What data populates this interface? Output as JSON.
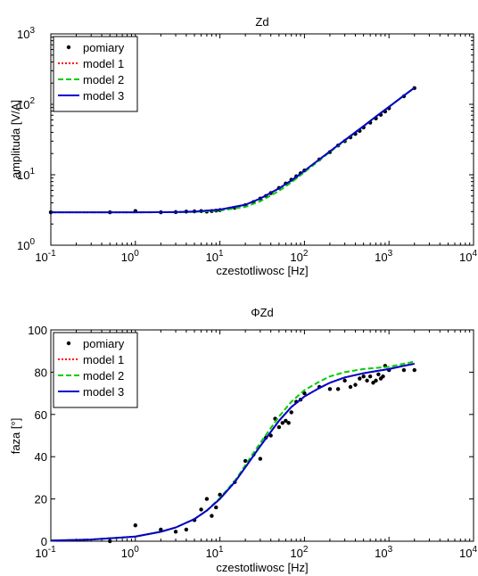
{
  "chart_data": [
    {
      "type": "line",
      "title": "Zd",
      "xlabel": "czestotliwosc [Hz]",
      "ylabel": "amplituda [V/A]",
      "xscale": "log",
      "yscale": "log",
      "xlim": [
        0.1,
        10000
      ],
      "ylim": [
        1,
        1000
      ],
      "x_ticks": [
        {
          "value": 0.1,
          "base": "10",
          "exp": "-1"
        },
        {
          "value": 1,
          "base": "10",
          "exp": "0"
        },
        {
          "value": 10,
          "base": "10",
          "exp": "1"
        },
        {
          "value": 100,
          "base": "10",
          "exp": "2"
        },
        {
          "value": 1000,
          "base": "10",
          "exp": "3"
        },
        {
          "value": 10000,
          "base": "10",
          "exp": "4"
        }
      ],
      "y_ticks": [
        {
          "value": 1,
          "base": "10",
          "exp": "0"
        },
        {
          "value": 10,
          "base": "10",
          "exp": "1"
        },
        {
          "value": 100,
          "base": "10",
          "exp": "2"
        },
        {
          "value": 1000,
          "base": "10",
          "exp": "3"
        }
      ],
      "legend_position": "top-left",
      "series": [
        {
          "name": "pomiary",
          "style": "markers",
          "color": "#000000",
          "points": [
            [
              0.1,
              2.93
            ],
            [
              0.5,
              2.93
            ],
            [
              1,
              3.05
            ],
            [
              2,
              2.93
            ],
            [
              3,
              2.95
            ],
            [
              4,
              3.0
            ],
            [
              5,
              3.02
            ],
            [
              6,
              3.05
            ],
            [
              7,
              3.0
            ],
            [
              8,
              3.05
            ],
            [
              9,
              3.1
            ],
            [
              10,
              3.15
            ],
            [
              15,
              3.4
            ],
            [
              20,
              3.7
            ],
            [
              25,
              4.1
            ],
            [
              30,
              4.6
            ],
            [
              35,
              5.0
            ],
            [
              40,
              5.5
            ],
            [
              50,
              6.5
            ],
            [
              60,
              7.5
            ],
            [
              70,
              8.5
            ],
            [
              80,
              9.5
            ],
            [
              90,
              10.5
            ],
            [
              100,
              11.5
            ],
            [
              150,
              16.5
            ],
            [
              200,
              21
            ],
            [
              250,
              26
            ],
            [
              300,
              30
            ],
            [
              350,
              34
            ],
            [
              400,
              38
            ],
            [
              450,
              42
            ],
            [
              500,
              47
            ],
            [
              600,
              55
            ],
            [
              700,
              63
            ],
            [
              800,
              71
            ],
            [
              900,
              79
            ],
            [
              1000,
              88
            ],
            [
              1500,
              130
            ],
            [
              2000,
              170
            ]
          ]
        },
        {
          "name": "model 1",
          "style": "dotted",
          "color": "#ff0000",
          "points": [
            [
              0.1,
              2.93
            ],
            [
              1,
              2.93
            ],
            [
              3,
              2.95
            ],
            [
              5,
              3.0
            ],
            [
              10,
              3.2
            ],
            [
              20,
              3.75
            ],
            [
              30,
              4.6
            ],
            [
              50,
              6.4
            ],
            [
              70,
              8.3
            ],
            [
              100,
              11.4
            ],
            [
              200,
              21.5
            ],
            [
              300,
              31
            ],
            [
              500,
              49
            ],
            [
              700,
              67
            ],
            [
              1000,
              92
            ],
            [
              1500,
              133
            ],
            [
              2000,
              172
            ]
          ]
        },
        {
          "name": "model 2",
          "style": "dashed",
          "color": "#00cc00",
          "points": [
            [
              0.1,
              2.93
            ],
            [
              1,
              2.93
            ],
            [
              3,
              2.94
            ],
            [
              5,
              2.97
            ],
            [
              10,
              3.1
            ],
            [
              20,
              3.5
            ],
            [
              30,
              4.2
            ],
            [
              50,
              5.9
            ],
            [
              70,
              7.8
            ],
            [
              100,
              10.9
            ],
            [
              200,
              21
            ],
            [
              300,
              30.5
            ],
            [
              500,
              49
            ],
            [
              700,
              67
            ],
            [
              1000,
              92
            ],
            [
              1500,
              133
            ],
            [
              2000,
              172
            ]
          ]
        },
        {
          "name": "model 3",
          "style": "solid",
          "color": "#0000cc",
          "points": [
            [
              0.1,
              2.93
            ],
            [
              1,
              2.93
            ],
            [
              3,
              2.95
            ],
            [
              5,
              3.0
            ],
            [
              10,
              3.2
            ],
            [
              20,
              3.75
            ],
            [
              30,
              4.6
            ],
            [
              50,
              6.4
            ],
            [
              70,
              8.3
            ],
            [
              100,
              11.4
            ],
            [
              200,
              21.5
            ],
            [
              300,
              31
            ],
            [
              500,
              49
            ],
            [
              700,
              67
            ],
            [
              1000,
              92
            ],
            [
              1500,
              133
            ],
            [
              2000,
              172
            ]
          ]
        }
      ]
    },
    {
      "type": "line",
      "title": "ΦZd",
      "xlabel": "czestotliwosc [Hz]",
      "ylabel": "faza [°]",
      "xscale": "log",
      "yscale": "linear",
      "xlim": [
        0.1,
        10000
      ],
      "ylim": [
        0,
        100
      ],
      "x_ticks": [
        {
          "value": 0.1,
          "base": "10",
          "exp": "-1"
        },
        {
          "value": 1,
          "base": "10",
          "exp": "0"
        },
        {
          "value": 10,
          "base": "10",
          "exp": "1"
        },
        {
          "value": 100,
          "base": "10",
          "exp": "2"
        },
        {
          "value": 1000,
          "base": "10",
          "exp": "3"
        },
        {
          "value": 10000,
          "base": "10",
          "exp": "4"
        }
      ],
      "y_ticks": [
        {
          "value": 0,
          "label": "0"
        },
        {
          "value": 20,
          "label": "20"
        },
        {
          "value": 40,
          "label": "40"
        },
        {
          "value": 60,
          "label": "60"
        },
        {
          "value": 80,
          "label": "80"
        },
        {
          "value": 100,
          "label": "100"
        }
      ],
      "legend_position": "top-left",
      "series": [
        {
          "name": "pomiary",
          "style": "markers",
          "color": "#000000",
          "points": [
            [
              0.5,
              0
            ],
            [
              1,
              7.5
            ],
            [
              2,
              5.5
            ],
            [
              3,
              4.5
            ],
            [
              4,
              5.5
            ],
            [
              5,
              10
            ],
            [
              6,
              15
            ],
            [
              7,
              20
            ],
            [
              8,
              12
            ],
            [
              9,
              16
            ],
            [
              10,
              22
            ],
            [
              15,
              28
            ],
            [
              20,
              38
            ],
            [
              25,
              41
            ],
            [
              30,
              39
            ],
            [
              35,
              49
            ],
            [
              40,
              50
            ],
            [
              45,
              58
            ],
            [
              50,
              54
            ],
            [
              55,
              56
            ],
            [
              60,
              57
            ],
            [
              65,
              56
            ],
            [
              70,
              61
            ],
            [
              80,
              66
            ],
            [
              90,
              67
            ],
            [
              100,
              70
            ],
            [
              150,
              73
            ],
            [
              200,
              72
            ],
            [
              250,
              72
            ],
            [
              300,
              76
            ],
            [
              350,
              73
            ],
            [
              400,
              74
            ],
            [
              450,
              77
            ],
            [
              500,
              78
            ],
            [
              550,
              76
            ],
            [
              600,
              78
            ],
            [
              650,
              75
            ],
            [
              700,
              76
            ],
            [
              750,
              79
            ],
            [
              800,
              77
            ],
            [
              850,
              78
            ],
            [
              900,
              83
            ],
            [
              1000,
              81
            ],
            [
              1500,
              81
            ],
            [
              2000,
              81
            ]
          ]
        },
        {
          "name": "model 1",
          "style": "dotted",
          "color": "#ff0000",
          "points": [
            [
              0.1,
              0.3
            ],
            [
              0.3,
              0.8
            ],
            [
              1,
              2.2
            ],
            [
              2,
              4.5
            ],
            [
              3,
              6.5
            ],
            [
              5,
              10.5
            ],
            [
              7,
              14.5
            ],
            [
              10,
              20
            ],
            [
              15,
              28
            ],
            [
              20,
              35
            ],
            [
              30,
              45
            ],
            [
              50,
              57
            ],
            [
              70,
              63.5
            ],
            [
              100,
              68.5
            ],
            [
              150,
              72.5
            ],
            [
              200,
              75
            ],
            [
              300,
              77.5
            ],
            [
              500,
              79.5
            ],
            [
              700,
              80.5
            ],
            [
              1000,
              81.5
            ],
            [
              1500,
              83
            ],
            [
              2000,
              84
            ]
          ]
        },
        {
          "name": "model 2",
          "style": "dashed",
          "color": "#00cc00",
          "points": [
            [
              0.1,
              0.3
            ],
            [
              0.3,
              0.8
            ],
            [
              1,
              2.2
            ],
            [
              2,
              4.5
            ],
            [
              3,
              6.5
            ],
            [
              5,
              10.5
            ],
            [
              7,
              14.5
            ],
            [
              10,
              20.5
            ],
            [
              15,
              28.5
            ],
            [
              20,
              36
            ],
            [
              30,
              46.5
            ],
            [
              50,
              59
            ],
            [
              70,
              66
            ],
            [
              100,
              71.5
            ],
            [
              150,
              75.5
            ],
            [
              200,
              78
            ],
            [
              300,
              80
            ],
            [
              500,
              81.5
            ],
            [
              700,
              82
            ],
            [
              1000,
              82.5
            ],
            [
              1500,
              84
            ],
            [
              2000,
              85
            ]
          ]
        },
        {
          "name": "model 3",
          "style": "solid",
          "color": "#0000cc",
          "points": [
            [
              0.1,
              0.3
            ],
            [
              0.3,
              0.8
            ],
            [
              1,
              2.2
            ],
            [
              2,
              4.5
            ],
            [
              3,
              6.5
            ],
            [
              5,
              10.5
            ],
            [
              7,
              14.5
            ],
            [
              10,
              20
            ],
            [
              15,
              28
            ],
            [
              20,
              35
            ],
            [
              30,
              45
            ],
            [
              50,
              57
            ],
            [
              70,
              63.5
            ],
            [
              100,
              68.5
            ],
            [
              150,
              72.5
            ],
            [
              200,
              75
            ],
            [
              300,
              77.5
            ],
            [
              500,
              79.5
            ],
            [
              700,
              80.5
            ],
            [
              1000,
              81.5
            ],
            [
              1500,
              83
            ],
            [
              2000,
              84
            ]
          ]
        }
      ]
    }
  ]
}
